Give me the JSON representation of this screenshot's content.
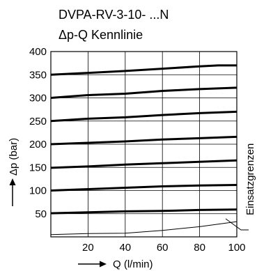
{
  "chart_data": {
    "type": "line",
    "title": "DVPA-RV-3-10- ...N",
    "subtitle": "Δp-Q Kennlinie",
    "xlabel": "Q (l/min)",
    "ylabel": "Δp (bar)",
    "xlim": [
      0,
      100
    ],
    "ylim": [
      0,
      400
    ],
    "x_ticks": [
      20,
      40,
      60,
      80,
      100
    ],
    "y_ticks": [
      50,
      100,
      150,
      200,
      250,
      300,
      350,
      400
    ],
    "grid": true,
    "annotation": "Einsatzgrenzen",
    "series": [
      {
        "x": [
          0,
          20,
          40,
          60,
          80,
          90,
          100
        ],
        "y": [
          350,
          354,
          358,
          363,
          368,
          370,
          370
        ],
        "style": "bold"
      },
      {
        "x": [
          0,
          20,
          40,
          60,
          80,
          100
        ],
        "y": [
          300,
          306,
          309,
          315,
          319,
          322
        ],
        "style": "bold"
      },
      {
        "x": [
          0,
          20,
          40,
          60,
          80,
          100
        ],
        "y": [
          250,
          255,
          258,
          263,
          267,
          270
        ],
        "style": "bold"
      },
      {
        "x": [
          0,
          20,
          40,
          60,
          80,
          100
        ],
        "y": [
          200,
          203,
          206,
          210,
          213,
          216
        ],
        "style": "bold"
      },
      {
        "x": [
          0,
          20,
          40,
          60,
          80,
          100
        ],
        "y": [
          149,
          152,
          156,
          159,
          162,
          165
        ],
        "style": "bold"
      },
      {
        "x": [
          0,
          20,
          40,
          60,
          80,
          100
        ],
        "y": [
          100,
          103,
          106,
          109,
          111,
          112
        ],
        "style": "bold"
      },
      {
        "x": [
          0,
          20,
          40,
          60,
          80,
          100
        ],
        "y": [
          51,
          53,
          55,
          56,
          58,
          59
        ],
        "style": "bold"
      },
      {
        "x": [
          0,
          20,
          40,
          50,
          60,
          70,
          80,
          100
        ],
        "y": [
          5,
          7,
          8,
          11,
          14,
          18,
          22,
          33
        ],
        "style": "thin"
      }
    ]
  }
}
